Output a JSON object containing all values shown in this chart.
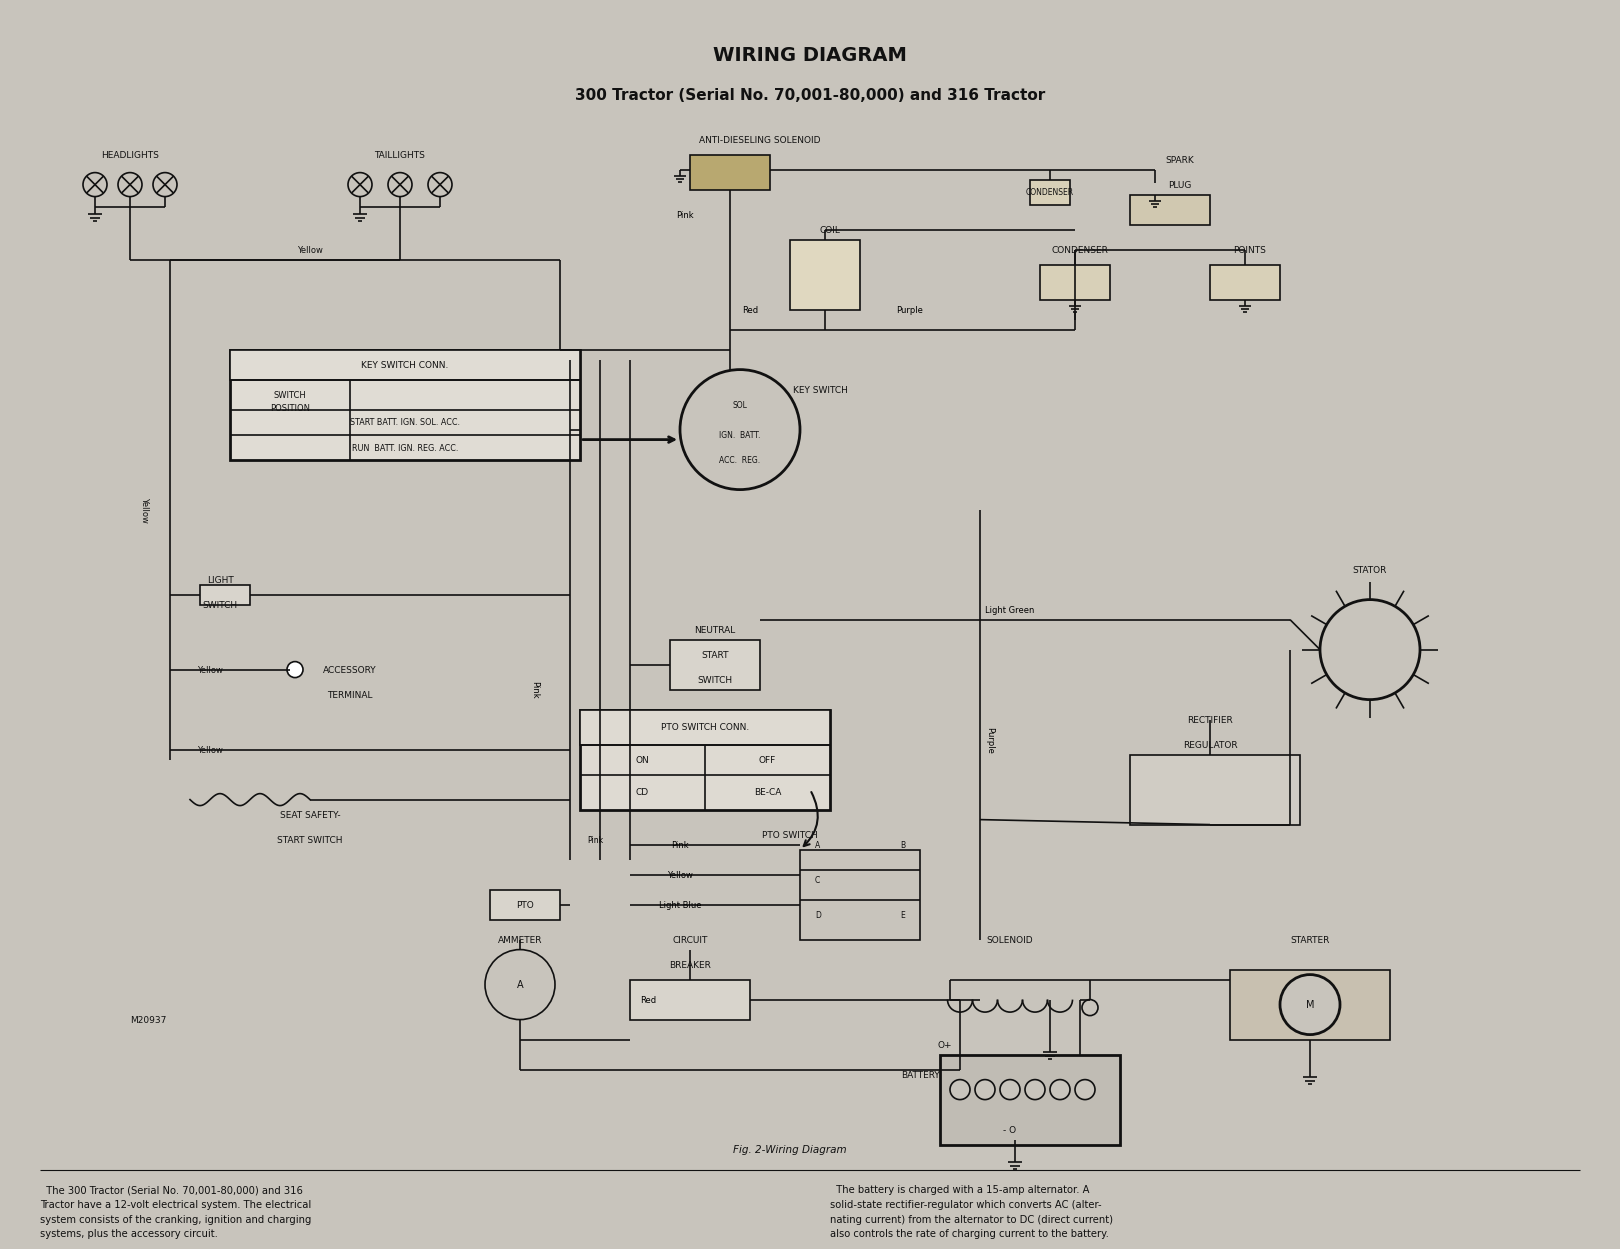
{
  "title_line1": "WIRING DIAGRAM",
  "title_line2": "300 Tractor (Serial No. 70,001-80,000) and 316 Tractor",
  "fig_caption": "Fig. 2-Wiring Diagram",
  "model_number": "M20937",
  "bg_color": "#c8c4bc",
  "line_color": "#111111",
  "text_color": "#111111",
  "body_text_left": "  The 300 Tractor (Serial No. 70,001-80,000) and 316\nTractor have a 12-volt electrical system. The electrical\nsystem consists of the cranking, ignition and charging\nsystems, plus the accessory circuit.",
  "body_text_right": "  The battery is charged with a 15-amp alternator. A\nsolid-state rectifier-regulator which converts AC (alter-\nnating current) from the alternator to DC (direct current)\nalso controls the rate of charging current to the battery."
}
